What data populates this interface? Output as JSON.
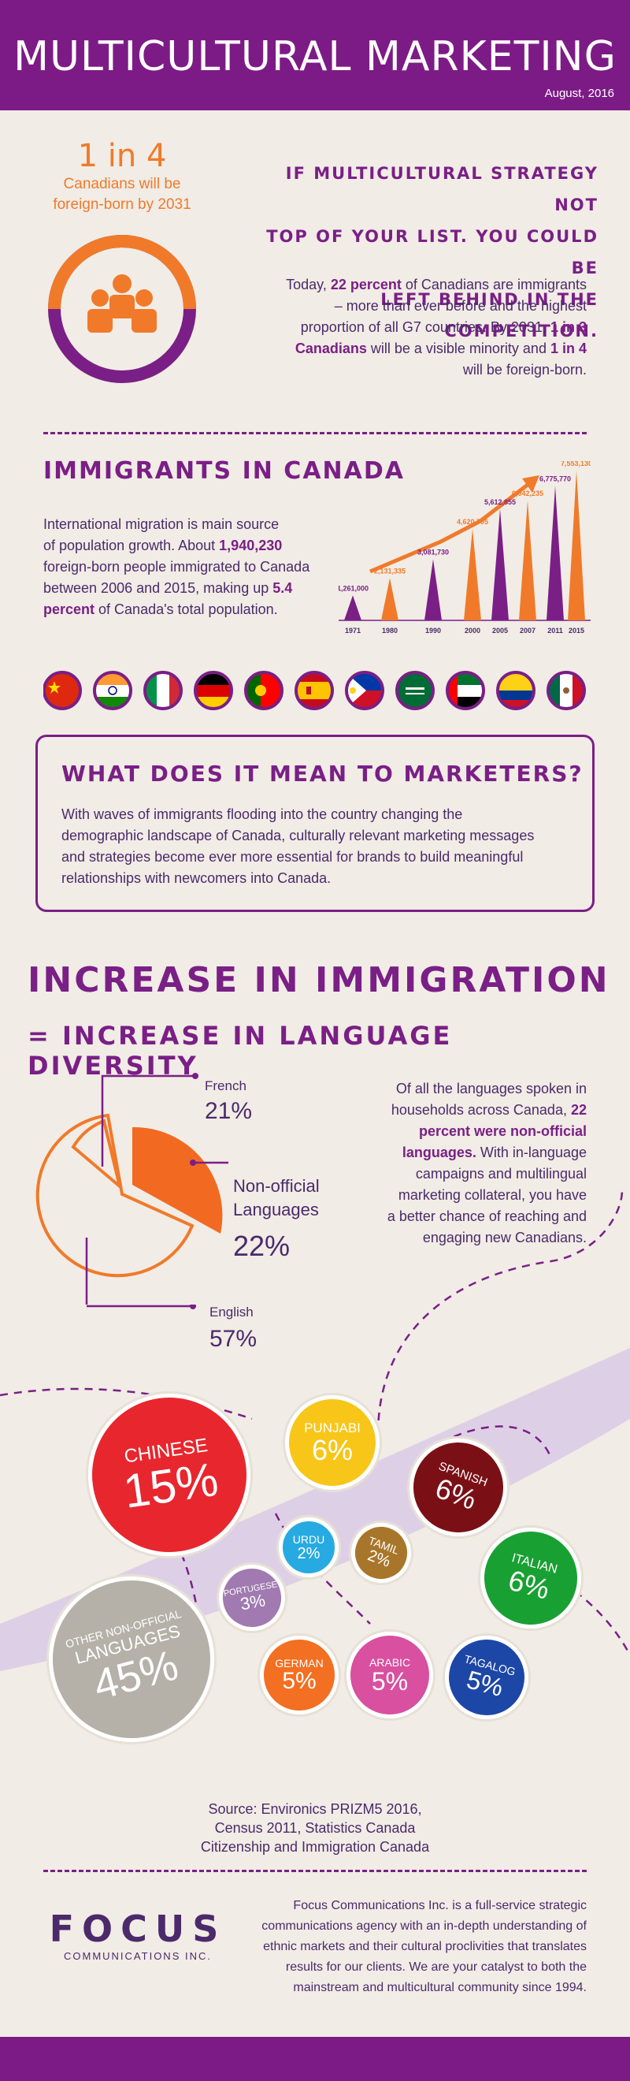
{
  "header": {
    "title": "MULTICULTURAL MARKETING",
    "date": "August, 2016"
  },
  "stat": {
    "big": "1 in 4",
    "label_line1": "Canadians will be",
    "label_line2": "foreign-born by 2031"
  },
  "intro": {
    "heading_lines": [
      "IF MULTICULTURAL STRATEGY NOT",
      "TOP OF YOUR LIST. YOU COULD BE",
      "LEFT BEHIND IN THE COMPETITION."
    ],
    "p_line1": "Today, ",
    "p_bold1": "22 percent",
    "p_line1b": " of Canadians are immigrants",
    "p_line2": "– more than ever before and the highest",
    "p_line3": "proportion of all G7 countries. By 2031, ",
    "p_bold2": "1 in 3",
    "p_bold3": "Canadians",
    "p_line4": " will be a visible minority and ",
    "p_bold4": "1 in 4",
    "p_line5": "will be foreign-born."
  },
  "immigrants": {
    "heading": "IMMIGRANTS IN CANADA",
    "t1": "International migration is main source",
    "t2": "of population growth. About ",
    "t2b": "1,940,230",
    "t3": "foreign-born people immigrated to Canada",
    "t4": "between 2006 and 2015, making up ",
    "t4b": "5.4",
    "t5b": "percent",
    "t5": " of Canada's total population."
  },
  "chart_data": {
    "type": "bar",
    "categories": [
      "1971",
      "1980",
      "1990",
      "2000",
      "2005",
      "2007",
      "2011",
      "2015"
    ],
    "values": [
      1261000,
      2131335,
      3081730,
      4620705,
      5612855,
      6042235,
      6775770,
      7553130
    ],
    "labels": [
      "1,261,000",
      "2,131,335",
      "3,081,730",
      "4,620,705",
      "5,612,855",
      "6,042,235",
      "6,775,770",
      "7,553,130"
    ],
    "colors": [
      "#7a1f86",
      "#f07a2a",
      "#7a1f86",
      "#f07a2a",
      "#7a1f86",
      "#f07a2a",
      "#7a1f86",
      "#f07a2a"
    ]
  },
  "flags": [
    "china",
    "india",
    "italy",
    "germany",
    "portugal",
    "spain",
    "philippines",
    "saudi-arabia",
    "uae",
    "colombia",
    "mexico"
  ],
  "marketers": {
    "heading": "WHAT DOES IT MEAN TO MARKETERS?",
    "lines": [
      "With waves of immigrants flooding into the country changing the",
      "demographic landscape of Canada, culturally relevant marketing messages",
      "and strategies become ever more essential for brands to build meaningful",
      "relationships with newcomers into Canada."
    ]
  },
  "increase": {
    "line1": "INCREASE IN IMMIGRATION",
    "line2": "=  INCREASE IN LANGUAGE DIVERSITY"
  },
  "pie": {
    "french_label": "French",
    "french_value": "21%",
    "nonofficial_label1": "Non-official",
    "nonofficial_label2": "Languages",
    "nonofficial_value": "22%",
    "english_label": "English",
    "english_value": "57%"
  },
  "languages_text": {
    "l1": "Of all the languages spoken in",
    "l2": "households across Canada, ",
    "l2b": "22",
    "l3b": "percent were non-official",
    "l4b": "languages.",
    "l4": " With in-language",
    "l5": "campaigns and multilingual",
    "l6": "marketing collateral, you have",
    "l7": "a better chance of reaching and",
    "l8": "engaging new Canadians."
  },
  "languages": [
    {
      "name": "CHINESE",
      "value": "15%",
      "color": "#e8262e"
    },
    {
      "name": "PUNJABI",
      "value": "6%",
      "color": "#f7c619"
    },
    {
      "name": "SPANISH",
      "value": "6%",
      "color": "#7a1016"
    },
    {
      "name": "URDU",
      "value": "2%",
      "color": "#27aae1"
    },
    {
      "name": "TAMIL",
      "value": "2%",
      "color": "#a8762a"
    },
    {
      "name": "ITALIAN",
      "value": "6%",
      "color": "#19a033"
    },
    {
      "name": "PORTUGESE",
      "value": "3%",
      "color": "#a07ab0"
    },
    {
      "name": "OTHER NON-OFFICIAL",
      "name2": "LANGUAGES",
      "value": "45%",
      "color": "#b5b1a9"
    },
    {
      "name": "GERMAN",
      "value": "5%",
      "color": "#f36f21"
    },
    {
      "name": "ARABIC",
      "value": "5%",
      "color": "#d8509f"
    },
    {
      "name": "TAGALOG",
      "value": "5%",
      "color": "#1d47a6"
    }
  ],
  "source": {
    "l1": "Source: Environics PRIZM5 2016,",
    "l2": "Census 2011, Statistics Canada",
    "l3": "Citizenship and Immigration Canada"
  },
  "footer": {
    "logo": "FOCUS",
    "logo_sub": "COMMUNICATIONS INC.",
    "lines": [
      "Focus Communications Inc. is a full-service strategic",
      "communications agency with an in-depth understanding of",
      "ethnic markets and their cultural proclivities that translates",
      "results for our clients. We are your catalyst to both the",
      "mainstream and multicultural community since 1994."
    ]
  }
}
